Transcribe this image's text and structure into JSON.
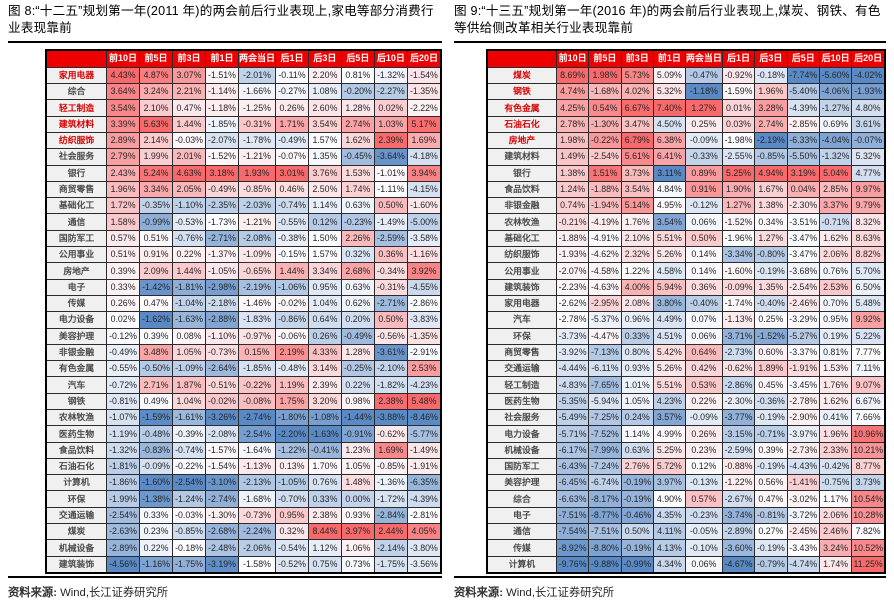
{
  "colors": {
    "header_bg": "#EE0000",
    "header_text": "#FFFFFF",
    "scale_min_blue": "#5A8AC6",
    "scale_mid_white": "#FCFCFF",
    "scale_max_red": "#F8696B",
    "label_highlight_red": "#D90000",
    "label_text_gray": "#4A4A4A",
    "grid": "#2B2B2B"
  },
  "panels": [
    {
      "figure_title": "图 8:“十二五”规划第一年(2011 年)的两会前后行业表现上,家电等部分消费行业表现靠前",
      "source_label": "资料来源:",
      "source_value": "Wind,长江证券研究所",
      "columns": [
        "前10日",
        "前5日",
        "前3日",
        "前1日",
        "两会当日",
        "后1日",
        "后3日",
        "后5日",
        "后10日",
        "后20日"
      ],
      "rows": [
        {
          "label": "家用电器",
          "highlight": true,
          "values": [
            4.43,
            4.87,
            3.07,
            -1.51,
            -2.01,
            -0.11,
            2.2,
            0.81,
            -1.32,
            -1.54
          ]
        },
        {
          "label": "综合",
          "highlight": false,
          "values": [
            3.64,
            3.24,
            2.21,
            -1.14,
            -1.66,
            -0.27,
            1.08,
            -0.2,
            -2.27,
            -1.35
          ]
        },
        {
          "label": "轻工制造",
          "highlight": true,
          "values": [
            3.54,
            2.1,
            0.47,
            -1.18,
            -1.25,
            0.26,
            2.6,
            1.28,
            0.02,
            -2.22
          ]
        },
        {
          "label": "建筑材料",
          "highlight": true,
          "values": [
            3.39,
            5.63,
            1.44,
            -1.85,
            -0.31,
            1.71,
            3.54,
            2.74,
            1.03,
            5.17
          ]
        },
        {
          "label": "纺织服饰",
          "highlight": true,
          "values": [
            2.89,
            2.14,
            -0.03,
            -2.07,
            -1.78,
            -0.49,
            1.57,
            1.62,
            2.39,
            1.69
          ]
        },
        {
          "label": "社会服务",
          "highlight": false,
          "values": [
            2.79,
            1.99,
            2.01,
            -1.52,
            -1.21,
            -0.07,
            1.35,
            -0.45,
            -3.64,
            -4.18
          ]
        },
        {
          "label": "银行",
          "highlight": false,
          "values": [
            2.43,
            5.24,
            4.63,
            3.18,
            1.93,
            3.01,
            3.76,
            1.53,
            -1.01,
            3.94
          ]
        },
        {
          "label": "商贸零售",
          "highlight": false,
          "values": [
            1.96,
            3.34,
            2.05,
            -0.49,
            -0.85,
            0.46,
            2.5,
            1.74,
            -1.11,
            -4.15
          ]
        },
        {
          "label": "基础化工",
          "highlight": false,
          "values": [
            1.72,
            -0.35,
            -1.1,
            -2.35,
            -2.03,
            -0.74,
            1.14,
            0.63,
            0.5,
            -1.6
          ]
        },
        {
          "label": "通信",
          "highlight": false,
          "values": [
            1.58,
            -0.99,
            -0.53,
            -1.73,
            -1.21,
            -0.55,
            0.12,
            -0.23,
            -1.49,
            -5.0
          ]
        },
        {
          "label": "国防军工",
          "highlight": false,
          "values": [
            0.57,
            0.51,
            -0.76,
            -2.71,
            -2.08,
            -0.38,
            1.5,
            2.26,
            -2.59,
            -3.58
          ]
        },
        {
          "label": "公用事业",
          "highlight": false,
          "values": [
            0.51,
            0.91,
            0.22,
            -1.37,
            -1.09,
            -0.15,
            1.57,
            0.32,
            0.36,
            -1.16
          ]
        },
        {
          "label": "房地产",
          "highlight": false,
          "values": [
            0.39,
            2.09,
            1.44,
            -1.05,
            -0.65,
            1.44,
            3.34,
            2.68,
            -0.34,
            3.92
          ]
        },
        {
          "label": "电子",
          "highlight": false,
          "values": [
            0.33,
            -1.42,
            -1.81,
            -2.98,
            -2.19,
            -1.06,
            0.95,
            0.63,
            -0.31,
            -4.55
          ]
        },
        {
          "label": "传媒",
          "highlight": false,
          "values": [
            0.26,
            0.47,
            -1.04,
            -2.18,
            -1.46,
            -0.02,
            1.04,
            0.62,
            -2.71,
            -2.86
          ]
        },
        {
          "label": "电力设备",
          "highlight": false,
          "values": [
            0.02,
            -1.62,
            -1.63,
            -2.88,
            -1.83,
            -0.86,
            0.64,
            0.2,
            0.5,
            -3.83
          ]
        },
        {
          "label": "美容护理",
          "highlight": false,
          "values": [
            -0.12,
            0.39,
            0.08,
            -1.1,
            -0.97,
            -0.06,
            0.26,
            -0.49,
            -0.56,
            -1.35
          ]
        },
        {
          "label": "非银金融",
          "highlight": false,
          "values": [
            -0.49,
            3.48,
            1.05,
            -0.73,
            0.15,
            2.19,
            4.33,
            1.28,
            -3.61,
            -2.91
          ]
        },
        {
          "label": "有色金属",
          "highlight": false,
          "values": [
            -0.55,
            -0.5,
            -1.09,
            -2.64,
            -1.85,
            -0.48,
            3.14,
            -0.25,
            -2.1,
            2.53
          ]
        },
        {
          "label": "汽车",
          "highlight": false,
          "values": [
            -0.72,
            2.71,
            1.87,
            -0.51,
            -0.22,
            1.19,
            2.39,
            0.22,
            -1.82,
            -4.23
          ]
        },
        {
          "label": "钢铁",
          "highlight": false,
          "values": [
            -0.81,
            0.49,
            1.04,
            -0.02,
            -0.08,
            1.75,
            3.2,
            0.98,
            2.38,
            5.48
          ]
        },
        {
          "label": "农林牧渔",
          "highlight": false,
          "values": [
            -1.07,
            -1.59,
            -1.61,
            -3.26,
            -2.74,
            -1.8,
            -1.08,
            -1.44,
            -3.88,
            -8.46
          ]
        },
        {
          "label": "医药生物",
          "highlight": false,
          "values": [
            -1.19,
            -0.48,
            -0.39,
            -2.08,
            -2.54,
            -2.2,
            -1.63,
            -0.91,
            -0.62,
            -5.77
          ]
        },
        {
          "label": "食品饮料",
          "highlight": false,
          "values": [
            -1.32,
            -0.83,
            -0.74,
            -1.57,
            -1.64,
            -1.22,
            -0.41,
            1.23,
            1.69,
            -1.49
          ]
        },
        {
          "label": "石油石化",
          "highlight": false,
          "values": [
            -1.81,
            -0.09,
            -0.22,
            -1.54,
            -1.13,
            0.13,
            1.7,
            1.05,
            -0.85,
            -1.91
          ]
        },
        {
          "label": "计算机",
          "highlight": false,
          "values": [
            -1.86,
            -1.6,
            -2.54,
            -3.1,
            -2.13,
            -1.05,
            0.76,
            1.48,
            -1.36,
            -6.35
          ]
        },
        {
          "label": "环保",
          "highlight": false,
          "values": [
            -1.99,
            -1.38,
            -1.24,
            -2.74,
            -1.68,
            -0.7,
            0.33,
            0.0,
            -1.72,
            -4.39
          ]
        },
        {
          "label": "交通运输",
          "highlight": false,
          "values": [
            -2.54,
            0.33,
            -0.03,
            -1.3,
            -0.73,
            0.95,
            2.38,
            0.93,
            -2.84,
            -2.81
          ]
        },
        {
          "label": "煤炭",
          "highlight": false,
          "values": [
            -2.63,
            0.23,
            -0.85,
            -2.68,
            -2.24,
            0.32,
            8.44,
            3.97,
            2.44,
            4.05
          ]
        },
        {
          "label": "机械设备",
          "highlight": false,
          "values": [
            -2.89,
            0.22,
            -0.18,
            -2.48,
            -2.06,
            -0.54,
            1.12,
            1.06,
            -2.14,
            -3.8
          ]
        },
        {
          "label": "建筑装饰",
          "highlight": false,
          "values": [
            -4.56,
            -1.16,
            -1.75,
            -3.19,
            -1.58,
            -0.52,
            0.75,
            0.73,
            -1.75,
            -3.56
          ]
        }
      ]
    },
    {
      "figure_title": "图 9:“十三五”规划第一年(2016 年)的两会前后行业表现上,煤炭、钢铁、有色等供给侧改革相关行业表现靠前",
      "source_label": "资料来源:",
      "source_value": "Wind,长江证券研究所",
      "columns": [
        "前10日",
        "前5日",
        "前3日",
        "前1日",
        "两会当日",
        "后1日",
        "后3日",
        "后5日",
        "后10日",
        "后20日"
      ],
      "rows": [
        {
          "label": "煤炭",
          "highlight": true,
          "values": [
            8.69,
            1.98,
            5.73,
            5.09,
            -0.47,
            -0.92,
            -0.18,
            -7.74,
            -5.6,
            -4.02
          ]
        },
        {
          "label": "钢铁",
          "highlight": true,
          "values": [
            4.74,
            -1.68,
            4.02,
            5.32,
            -1.18,
            -1.59,
            1.96,
            -5.4,
            -4.06,
            -1.93
          ]
        },
        {
          "label": "有色金属",
          "highlight": true,
          "values": [
            4.25,
            0.54,
            6.67,
            7.4,
            1.27,
            0.01,
            3.28,
            -4.39,
            -1.27,
            4.8
          ]
        },
        {
          "label": "石油石化",
          "highlight": true,
          "values": [
            2.78,
            -1.3,
            3.47,
            4.5,
            0.25,
            0.03,
            2.74,
            -2.85,
            0.69,
            3.61
          ]
        },
        {
          "label": "房地产",
          "highlight": true,
          "values": [
            1.98,
            -0.22,
            6.79,
            6.38,
            -0.09,
            -1.98,
            -2.19,
            -6.33,
            -4.04,
            -0.07
          ]
        },
        {
          "label": "建筑材料",
          "highlight": false,
          "values": [
            1.49,
            -2.54,
            5.61,
            6.41,
            -0.33,
            -2.55,
            -0.85,
            -5.5,
            -1.32,
            5.32
          ]
        },
        {
          "label": "银行",
          "highlight": false,
          "values": [
            1.38,
            1.51,
            3.73,
            3.11,
            0.89,
            5.25,
            4.94,
            3.19,
            5.04,
            4.77
          ]
        },
        {
          "label": "食品饮料",
          "highlight": false,
          "values": [
            1.24,
            -1.88,
            3.54,
            4.84,
            0.91,
            1.9,
            1.67,
            0.04,
            2.85,
            9.97
          ]
        },
        {
          "label": "非银金融",
          "highlight": false,
          "values": [
            0.74,
            -1.94,
            5.14,
            4.95,
            -0.12,
            1.27,
            1.38,
            -2.3,
            3.37,
            9.79
          ]
        },
        {
          "label": "农林牧渔",
          "highlight": false,
          "values": [
            -0.21,
            -4.19,
            1.76,
            3.54,
            0.06,
            -1.52,
            0.34,
            -3.51,
            -0.71,
            8.32
          ]
        },
        {
          "label": "基础化工",
          "highlight": false,
          "values": [
            -1.88,
            -4.91,
            2.1,
            5.51,
            0.5,
            -1.96,
            1.27,
            -3.47,
            1.62,
            8.63
          ]
        },
        {
          "label": "纺织服饰",
          "highlight": false,
          "values": [
            -1.93,
            -4.62,
            2.32,
            5.26,
            0.14,
            -3.34,
            -0.8,
            -3.47,
            2.06,
            8.82
          ]
        },
        {
          "label": "公用事业",
          "highlight": false,
          "values": [
            -2.07,
            -4.58,
            1.22,
            4.58,
            0.14,
            -1.6,
            -0.19,
            -3.68,
            0.76,
            5.7
          ]
        },
        {
          "label": "建筑装饰",
          "highlight": false,
          "values": [
            -2.23,
            -4.63,
            4.0,
            5.94,
            0.36,
            -0.09,
            1.35,
            -2.54,
            2.53,
            6.5
          ]
        },
        {
          "label": "家用电器",
          "highlight": false,
          "values": [
            -2.62,
            -2.95,
            2.08,
            3.8,
            -0.4,
            -1.74,
            -0.4,
            -2.46,
            0.7,
            5.48
          ]
        },
        {
          "label": "汽车",
          "highlight": false,
          "values": [
            -2.78,
            -5.37,
            0.96,
            4.49,
            0.07,
            -1.13,
            0.25,
            -3.29,
            0.95,
            9.92
          ]
        },
        {
          "label": "环保",
          "highlight": false,
          "values": [
            -3.73,
            -4.47,
            0.33,
            4.51,
            0.06,
            -3.71,
            -1.52,
            -5.27,
            0.19,
            5.22
          ]
        },
        {
          "label": "商贸零售",
          "highlight": false,
          "values": [
            -3.92,
            -7.13,
            0.8,
            5.42,
            0.64,
            -2.73,
            0.6,
            -3.37,
            0.81,
            7.77
          ]
        },
        {
          "label": "交通运输",
          "highlight": false,
          "values": [
            -4.44,
            -6.11,
            0.93,
            5.26,
            0.42,
            -0.62,
            1.89,
            -1.91,
            1.53,
            7.11
          ]
        },
        {
          "label": "轻工制造",
          "highlight": false,
          "values": [
            -4.83,
            -7.65,
            1.01,
            5.51,
            0.53,
            -2.86,
            0.45,
            -3.45,
            1.76,
            9.07
          ]
        },
        {
          "label": "医药生物",
          "highlight": false,
          "values": [
            -5.35,
            -5.94,
            1.05,
            4.23,
            0.22,
            -2.3,
            -0.36,
            -2.78,
            1.62,
            6.67
          ]
        },
        {
          "label": "社会服务",
          "highlight": false,
          "values": [
            -5.49,
            -7.25,
            0.24,
            3.57,
            -0.09,
            -3.77,
            -0.19,
            -2.9,
            0.41,
            7.66
          ]
        },
        {
          "label": "电力设备",
          "highlight": false,
          "values": [
            -5.71,
            -7.52,
            1.14,
            4.99,
            0.26,
            -3.15,
            -0.71,
            -3.97,
            1.96,
            10.96
          ]
        },
        {
          "label": "机械设备",
          "highlight": false,
          "values": [
            -6.17,
            -7.99,
            0.63,
            5.25,
            0.23,
            -2.59,
            0.39,
            -2.73,
            2.33,
            10.21
          ]
        },
        {
          "label": "国防军工",
          "highlight": false,
          "values": [
            -6.43,
            -7.24,
            2.76,
            5.72,
            0.12,
            -0.88,
            -0.19,
            -4.43,
            -0.42,
            8.77
          ]
        },
        {
          "label": "美容护理",
          "highlight": false,
          "values": [
            -6.45,
            -6.74,
            -0.19,
            3.97,
            -0.13,
            -1.22,
            0.56,
            -1.41,
            -0.75,
            3.73
          ]
        },
        {
          "label": "综合",
          "highlight": false,
          "values": [
            -6.63,
            -8.17,
            -0.19,
            4.9,
            0.57,
            -2.67,
            0.47,
            -3.02,
            1.17,
            10.54
          ]
        },
        {
          "label": "电子",
          "highlight": false,
          "values": [
            -7.51,
            -8.77,
            -0.46,
            4.35,
            -0.23,
            -3.74,
            -0.81,
            -3.72,
            2.06,
            10.28
          ]
        },
        {
          "label": "通信",
          "highlight": false,
          "values": [
            -7.54,
            -7.51,
            0.5,
            4.11,
            -0.05,
            -2.89,
            0.27,
            -2.45,
            2.46,
            7.82
          ]
        },
        {
          "label": "传媒",
          "highlight": false,
          "values": [
            -8.92,
            -8.8,
            -0.19,
            4.13,
            -0.1,
            -3.6,
            -0.19,
            -3.43,
            3.24,
            10.52
          ]
        },
        {
          "label": "计算机",
          "highlight": false,
          "values": [
            -9.76,
            -9.88,
            -0.99,
            4.34,
            0.06,
            -4.67,
            -0.79,
            -4.74,
            1.74,
            11.25
          ]
        }
      ]
    }
  ]
}
